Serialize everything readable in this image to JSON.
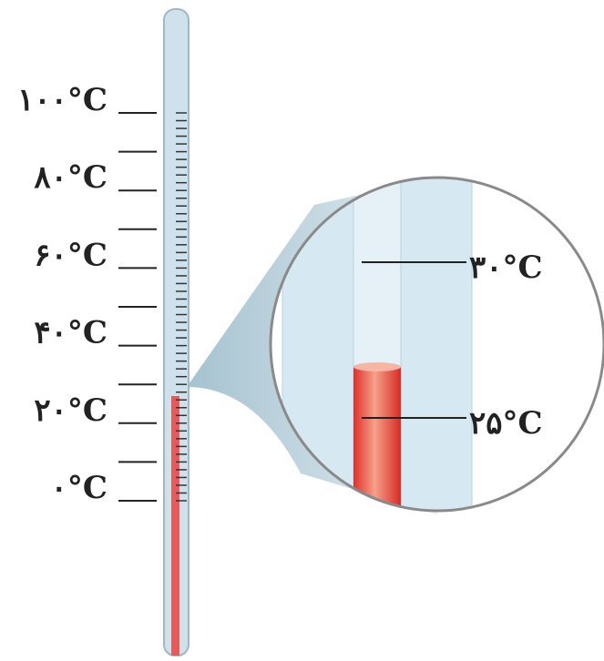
{
  "scale_labels": [
    "۱۰۰°C",
    "۸۰°C",
    "۶۰°C",
    "۴۰°C",
    "۲۰°C",
    "۰°C"
  ],
  "zoom_labels": [
    "۳۰°C",
    "۲۵°C"
  ]
}
